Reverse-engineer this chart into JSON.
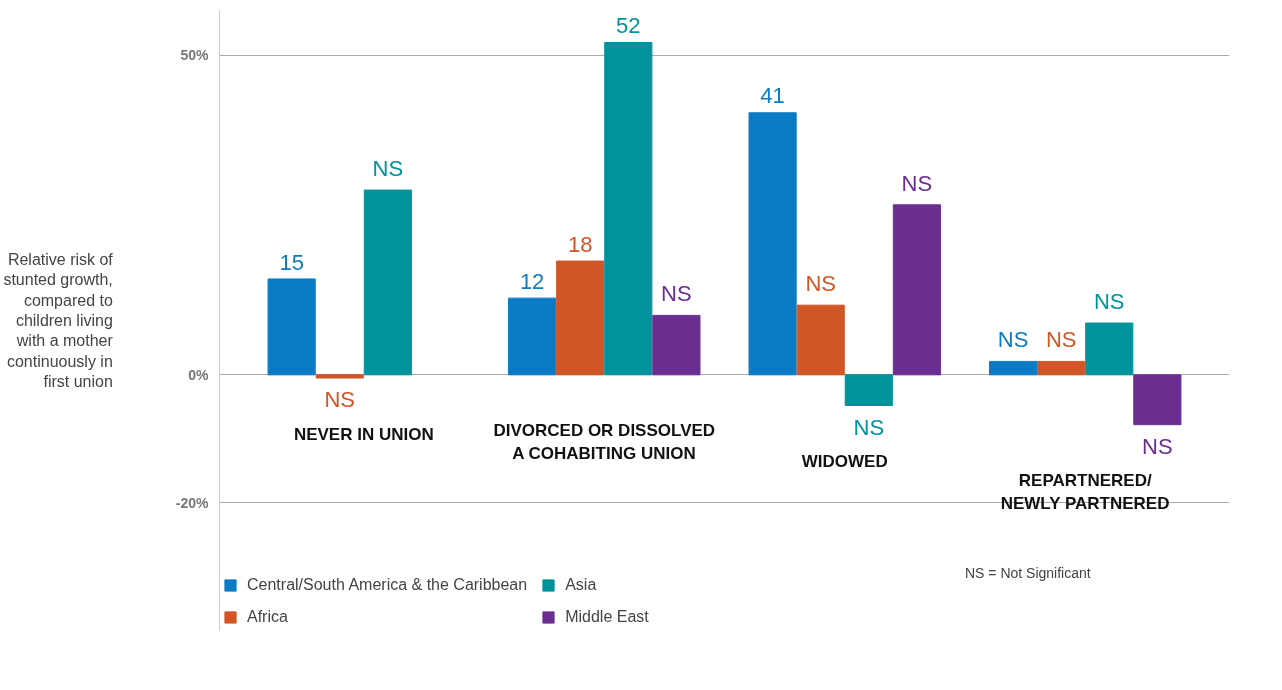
{
  "chart_data": {
    "type": "bar",
    "ylabel": "Relative risk of stunted growth, compared to children living with a mother continuously in first union",
    "categories": [
      "NEVER IN UNION",
      "DIVORCED OR DISSOLVED\nA COHABITING UNION",
      "WIDOWED",
      "REPARTNERED/\nNEWLY PARTNERED"
    ],
    "series": [
      {
        "name": "Central/South America & the Caribbean",
        "color": "#0a7bc4",
        "values": [
          15,
          12,
          41,
          2.1
        ],
        "value_labels": [
          "15",
          "12",
          "41",
          "NS"
        ]
      },
      {
        "name": "Africa",
        "color": "#d05627",
        "values": [
          -0.5,
          17.8,
          10.9,
          2.1
        ],
        "value_labels": [
          "NS",
          "18",
          "NS",
          "NS"
        ]
      },
      {
        "name": "Asia",
        "color": "#00939b",
        "values": [
          28.9,
          52,
          -4.8,
          8.1
        ],
        "value_labels": [
          "NS",
          "52",
          "NS",
          "NS"
        ]
      },
      {
        "name": "Middle East",
        "color": "#6a2e91",
        "values": [
          null,
          9.3,
          26.6,
          -7.8
        ],
        "value_labels": [
          null,
          "NS",
          "NS",
          "NS"
        ]
      }
    ],
    "ylim": [
      -40,
      57
    ],
    "yticks": [
      {
        "value": 50,
        "label": "50%"
      },
      {
        "value": 0,
        "label": "0%"
      },
      {
        "value": -20,
        "label": "-20%"
      }
    ],
    "grid": "y",
    "legend": "bottom",
    "tick_labels": "y",
    "annotations": [
      "NS = Not Significant"
    ]
  }
}
